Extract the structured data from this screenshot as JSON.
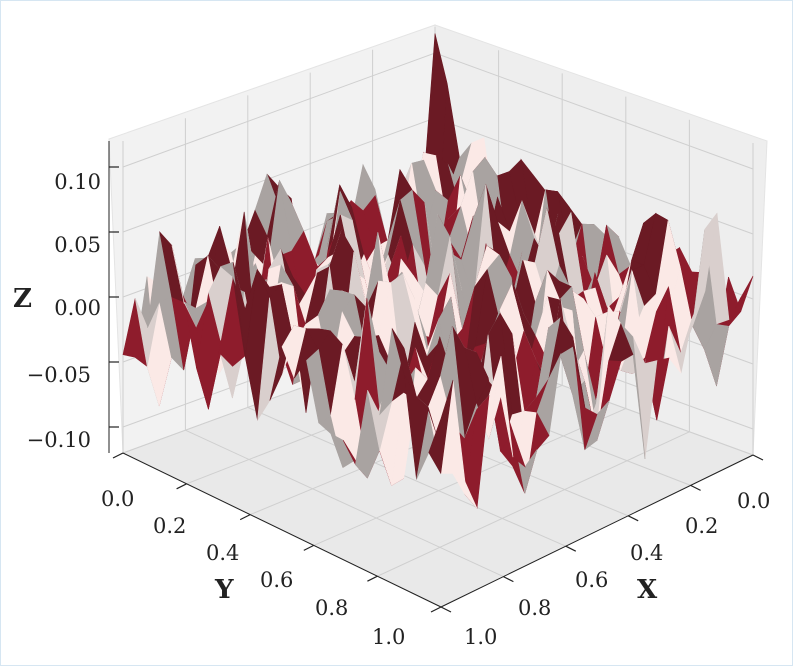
{
  "chart_data": {
    "type": "surface3d",
    "title": "",
    "xlabel": "X",
    "ylabel": "Y",
    "zlabel": "Z",
    "x_range": [
      0.0,
      1.0
    ],
    "y_range": [
      0.0,
      1.0
    ],
    "z_range": [
      -0.12,
      0.12
    ],
    "x_ticks": [
      "0.0",
      "0.2",
      "0.4",
      "0.6",
      "0.8",
      "1.0"
    ],
    "y_ticks": [
      "0.0",
      "0.2",
      "0.4",
      "0.6",
      "0.8",
      "1.0"
    ],
    "z_ticks": [
      "−0.10",
      "−0.05",
      "0.00",
      "0.05",
      "0.10"
    ],
    "grid": true,
    "colormap": [
      "#6b1a24",
      "#8e1c2c",
      "#a9a3a1",
      "#d9cfcd",
      "#fbe9e6"
    ],
    "pane_color": "#f2f2f2",
    "grid_color": "#cfcfcf",
    "view": {
      "elevation_deg": 25,
      "azimuth_deg": 45
    }
  }
}
